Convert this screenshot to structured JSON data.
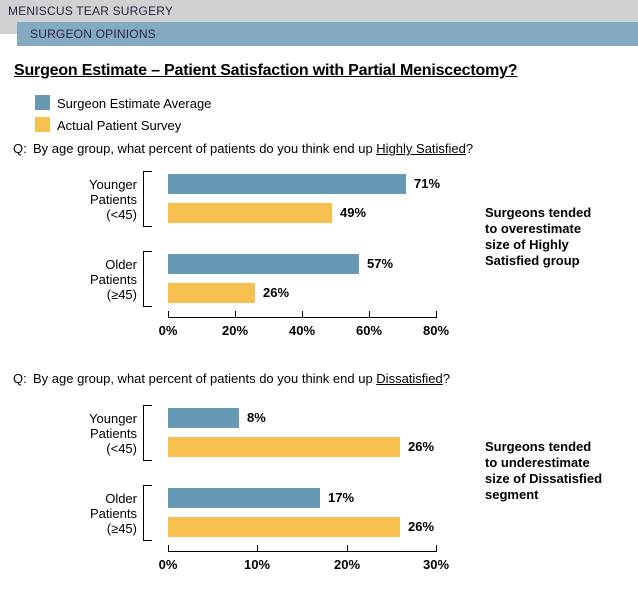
{
  "header": {
    "breadcrumb": "MENISCUS TEAR SURGERY",
    "section": "SURGEON OPINIONS",
    "breadcrumb_bar_color": "#d1d1d1",
    "section_bar_color": "#84aac2",
    "text_color": "#2b2540"
  },
  "title": "Surgeon Estimate – Patient Satisfaction with Partial Meniscectomy?",
  "legend": [
    {
      "label": "Surgeon Estimate Average",
      "color": "#6699b3"
    },
    {
      "label": "Actual Patient Survey",
      "color": "#f7c04f"
    }
  ],
  "questions": [
    {
      "prefix": "Q:",
      "text": "By age group, what percent of patients do you think end up ",
      "underlined": "Highly Satisfied",
      "suffix": "?"
    },
    {
      "prefix": "Q:",
      "text": "By age group, what percent of patients do you think end up ",
      "underlined": "Dissatisfied",
      "suffix": "?"
    }
  ],
  "chart_data": [
    {
      "type": "bar",
      "orientation": "horizontal",
      "categories": [
        "Younger Patients (<45)",
        "Older Patients (≥45)"
      ],
      "category_lines": [
        [
          "Younger",
          "Patients",
          "(<45)"
        ],
        [
          "Older",
          "Patients",
          "(≥45)"
        ]
      ],
      "series": [
        {
          "name": "Surgeon Estimate Average",
          "color": "#6699b3",
          "values": [
            71,
            57
          ]
        },
        {
          "name": "Actual Patient Survey",
          "color": "#f7c04f",
          "values": [
            49,
            26
          ]
        }
      ],
      "value_label_suffix": "%",
      "xlim": [
        0,
        80
      ],
      "tick_values": [
        0,
        20,
        40,
        60,
        80
      ],
      "ticks": [
        "0%",
        "20%",
        "40%",
        "60%",
        "80%"
      ],
      "grid": false,
      "note": "Surgeons tended to overestimate size of Highly Satisfied group",
      "note_lines": [
        "Surgeons tended",
        "to overestimate",
        "size of Highly",
        "Satisfied group"
      ]
    },
    {
      "type": "bar",
      "orientation": "horizontal",
      "categories": [
        "Younger Patients (<45)",
        "Older Patients (≥45)"
      ],
      "category_lines": [
        [
          "Younger",
          "Patients",
          "(<45)"
        ],
        [
          "Older",
          "Patients",
          "(≥45)"
        ]
      ],
      "series": [
        {
          "name": "Surgeon Estimate Average",
          "color": "#6699b3",
          "values": [
            8,
            17
          ]
        },
        {
          "name": "Actual Patient Survey",
          "color": "#f7c04f",
          "values": [
            26,
            26
          ]
        }
      ],
      "value_label_suffix": "%",
      "xlim": [
        0,
        30
      ],
      "tick_values": [
        0,
        10,
        20,
        30
      ],
      "ticks": [
        "0%",
        "10%",
        "20%",
        "30%"
      ],
      "grid": false,
      "note": "Surgeons tended to underestimate size of Dissatisfied segment",
      "note_lines": [
        "Surgeons tended",
        "to underestimate",
        "size of Dissatisfied",
        "segment"
      ]
    }
  ]
}
